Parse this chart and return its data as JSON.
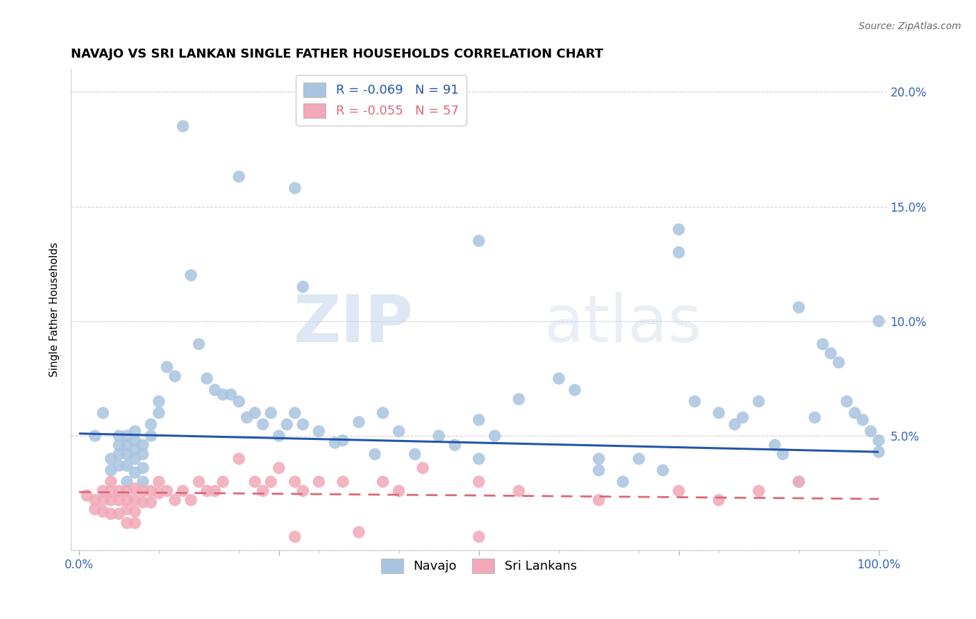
{
  "title": "NAVAJO VS SRI LANKAN SINGLE FATHER HOUSEHOLDS CORRELATION CHART",
  "source": "Source: ZipAtlas.com",
  "ylabel": "Single Father Households",
  "xlim": [
    0.0,
    1.0
  ],
  "ylim": [
    0.0,
    0.21
  ],
  "navajo_R": -0.069,
  "navajo_N": 91,
  "srilanka_R": -0.055,
  "srilanka_N": 57,
  "navajo_color": "#a8c4e0",
  "srilanka_color": "#f2a8b8",
  "navajo_line_color": "#2255aa",
  "srilanka_line_color": "#dd6677",
  "watermark_zip": "ZIP",
  "watermark_atlas": "atlas",
  "navajo_x": [
    0.02,
    0.03,
    0.04,
    0.04,
    0.05,
    0.05,
    0.05,
    0.05,
    0.06,
    0.06,
    0.06,
    0.06,
    0.06,
    0.07,
    0.07,
    0.07,
    0.07,
    0.07,
    0.08,
    0.08,
    0.08,
    0.08,
    0.09,
    0.09,
    0.1,
    0.1,
    0.11,
    0.12,
    0.13,
    0.14,
    0.15,
    0.16,
    0.17,
    0.18,
    0.19,
    0.2,
    0.21,
    0.22,
    0.23,
    0.24,
    0.25,
    0.26,
    0.27,
    0.28,
    0.3,
    0.32,
    0.33,
    0.35,
    0.37,
    0.38,
    0.4,
    0.42,
    0.45,
    0.47,
    0.5,
    0.5,
    0.52,
    0.55,
    0.6,
    0.62,
    0.65,
    0.65,
    0.68,
    0.7,
    0.73,
    0.75,
    0.77,
    0.8,
    0.82,
    0.83,
    0.85,
    0.87,
    0.88,
    0.9,
    0.92,
    0.93,
    0.94,
    0.95,
    0.96,
    0.97,
    0.98,
    0.99,
    1.0,
    1.0,
    1.0,
    0.2,
    0.27,
    0.28,
    0.5,
    0.75,
    0.9
  ],
  "navajo_y": [
    0.05,
    0.06,
    0.04,
    0.035,
    0.05,
    0.046,
    0.042,
    0.037,
    0.05,
    0.046,
    0.042,
    0.037,
    0.03,
    0.052,
    0.048,
    0.044,
    0.04,
    0.034,
    0.046,
    0.042,
    0.036,
    0.03,
    0.055,
    0.05,
    0.065,
    0.06,
    0.08,
    0.076,
    0.185,
    0.12,
    0.09,
    0.075,
    0.07,
    0.068,
    0.068,
    0.065,
    0.058,
    0.06,
    0.055,
    0.06,
    0.05,
    0.055,
    0.06,
    0.055,
    0.052,
    0.047,
    0.048,
    0.056,
    0.042,
    0.06,
    0.052,
    0.042,
    0.05,
    0.046,
    0.057,
    0.04,
    0.05,
    0.066,
    0.075,
    0.07,
    0.04,
    0.035,
    0.03,
    0.04,
    0.035,
    0.14,
    0.065,
    0.06,
    0.055,
    0.058,
    0.065,
    0.046,
    0.042,
    0.03,
    0.058,
    0.09,
    0.086,
    0.082,
    0.065,
    0.06,
    0.057,
    0.052,
    0.048,
    0.043,
    0.1,
    0.163,
    0.158,
    0.115,
    0.135,
    0.13,
    0.106
  ],
  "srilanka_x": [
    0.01,
    0.02,
    0.02,
    0.03,
    0.03,
    0.03,
    0.04,
    0.04,
    0.04,
    0.04,
    0.05,
    0.05,
    0.05,
    0.06,
    0.06,
    0.06,
    0.06,
    0.07,
    0.07,
    0.07,
    0.07,
    0.08,
    0.08,
    0.09,
    0.09,
    0.1,
    0.1,
    0.11,
    0.12,
    0.13,
    0.14,
    0.15,
    0.16,
    0.17,
    0.18,
    0.2,
    0.22,
    0.23,
    0.24,
    0.25,
    0.27,
    0.28,
    0.3,
    0.33,
    0.35,
    0.38,
    0.4,
    0.43,
    0.5,
    0.55,
    0.65,
    0.75,
    0.8,
    0.85,
    0.9,
    0.27,
    0.5
  ],
  "srilanka_y": [
    0.024,
    0.022,
    0.018,
    0.026,
    0.022,
    0.017,
    0.03,
    0.026,
    0.022,
    0.016,
    0.026,
    0.022,
    0.016,
    0.026,
    0.022,
    0.018,
    0.012,
    0.027,
    0.022,
    0.017,
    0.012,
    0.026,
    0.021,
    0.026,
    0.021,
    0.03,
    0.025,
    0.026,
    0.022,
    0.026,
    0.022,
    0.03,
    0.026,
    0.026,
    0.03,
    0.04,
    0.03,
    0.026,
    0.03,
    0.036,
    0.03,
    0.026,
    0.03,
    0.03,
    0.008,
    0.03,
    0.026,
    0.036,
    0.03,
    0.026,
    0.022,
    0.026,
    0.022,
    0.026,
    0.03,
    0.006,
    0.006
  ],
  "navajo_trendline_x": [
    0.0,
    1.0
  ],
  "navajo_trendline_y": [
    0.051,
    0.043
  ],
  "srilanka_trendline_x": [
    0.0,
    1.0
  ],
  "srilanka_trendline_y": [
    0.0255,
    0.0225
  ]
}
